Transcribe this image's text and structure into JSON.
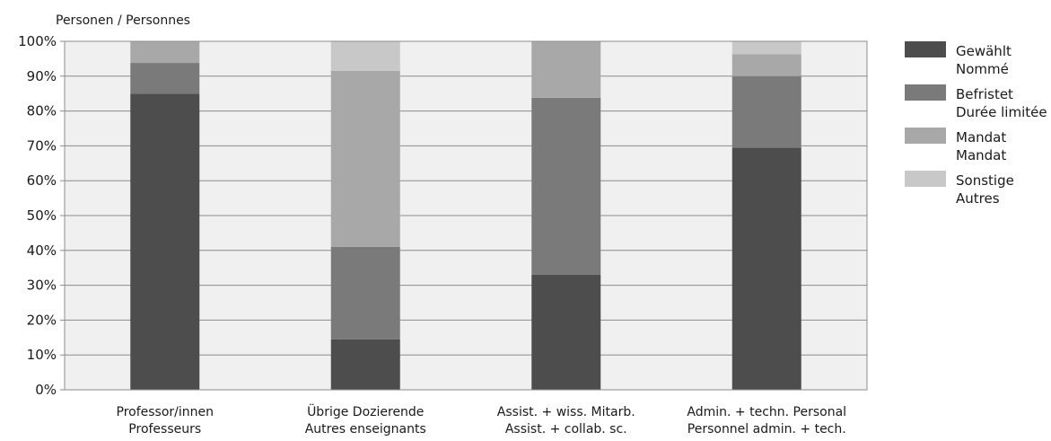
{
  "chart_data": {
    "type": "bar",
    "stacked": true,
    "normalized": true,
    "unit_label": "Personen / Personnes",
    "categories": [
      [
        "Professor/innen",
        "Professeurs"
      ],
      [
        "Übrige Dozierende",
        "Autres enseignants"
      ],
      [
        "Assist. + wiss. Mitarb.",
        "Assist. + collab. sc."
      ],
      [
        "Admin. + techn. Personal",
        "Personnel admin. + tech."
      ]
    ],
    "series": [
      {
        "name": [
          "Gewählt",
          "Nommé"
        ],
        "color": "#4d4d4d",
        "values": [
          85,
          14.5,
          33,
          69.5
        ]
      },
      {
        "name": [
          "Befristet",
          "Durée limitée"
        ],
        "color": "#7a7a7a",
        "values": [
          8.8,
          26.5,
          50.8,
          20.5
        ]
      },
      {
        "name": [
          "Mandat",
          "Mandat"
        ],
        "color": "#a8a8a8",
        "values": [
          6.2,
          50.5,
          16.2,
          6.3
        ]
      },
      {
        "name": [
          "Sonstige",
          "Autres"
        ],
        "color": "#c8c8c8",
        "values": [
          0,
          8.5,
          0,
          3.7
        ]
      }
    ],
    "ylim": [
      0,
      100
    ],
    "yticks": [
      "0%",
      "10%",
      "20%",
      "30%",
      "40%",
      "50%",
      "60%",
      "70%",
      "80%",
      "90%",
      "100%"
    ],
    "grid": true,
    "legend": "right",
    "plot_background": "#f0f0f0"
  }
}
